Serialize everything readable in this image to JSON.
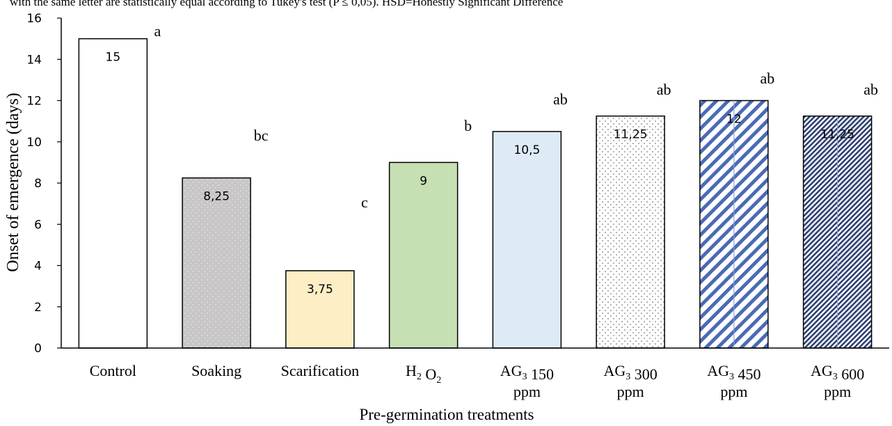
{
  "caption_fragment": "with the same letter are statistically equal according to Tukey's test (P ≤ 0,05). HSD=Honestly Significant Difference",
  "chart_data": {
    "type": "bar",
    "title": "",
    "xlabel": "Pre-germination treatments",
    "ylabel": "Onset of emergence (days)",
    "ylim": [
      0,
      16
    ],
    "yticks": [
      0,
      2,
      4,
      6,
      8,
      10,
      12,
      14,
      16
    ],
    "grid": false,
    "legend": "none",
    "categories": [
      {
        "label": "Control",
        "base": "Control",
        "sub": "",
        "line2": ""
      },
      {
        "label": "Soaking",
        "base": "Soaking",
        "sub": "",
        "line2": ""
      },
      {
        "label": "Scarification",
        "base": "Scarification",
        "sub": "",
        "line2": ""
      },
      {
        "label": "H2 O2",
        "base": "H",
        "sub": "2",
        "mid": "O",
        "sub2": "2",
        "line2": ""
      },
      {
        "label": "AG3 150 ppm",
        "base": "AG",
        "sub": "3",
        "rest": "150",
        "line2": "ppm"
      },
      {
        "label": "AG3 300 ppm",
        "base": "AG",
        "sub": "3",
        "rest": "300",
        "line2": "ppm"
      },
      {
        "label": "AG3 450 ppm",
        "base": "AG",
        "sub": "3",
        "rest": "450",
        "line2": "ppm"
      },
      {
        "label": "AG3 600 ppm",
        "base": "AG",
        "sub": "3",
        "rest": "600",
        "line2": "ppm"
      }
    ],
    "values": [
      15,
      8.25,
      3.75,
      9,
      10.5,
      11.25,
      12,
      11.25
    ],
    "data_labels": [
      "15",
      "8,25",
      "3,75",
      "9",
      "10,5",
      "11,25",
      "12",
      "11,25"
    ],
    "significance_letters": [
      "a",
      "bc",
      "c",
      "b",
      "ab",
      "ab",
      "ab",
      "ab"
    ],
    "bar_styles": [
      {
        "fill": "#ffffff",
        "pattern": "none"
      },
      {
        "fill": "#c8c6c6",
        "pattern": "dots-light"
      },
      {
        "fill": "#fdeec6",
        "pattern": "none"
      },
      {
        "fill": "#c6dfb3",
        "pattern": "none"
      },
      {
        "fill": "#deebf7",
        "pattern": "none"
      },
      {
        "fill": "#ffffff",
        "pattern": "dots-dark"
      },
      {
        "fill": "#ffffff",
        "pattern": "wide-diagonal"
      },
      {
        "fill": "#ffffff",
        "pattern": "narrow-diagonal"
      }
    ],
    "colors": {
      "axis": "#000000",
      "bar_border": "#000000",
      "hatch_blue": "#4a6ab5",
      "hatch_dark": "#2e3f73"
    }
  }
}
